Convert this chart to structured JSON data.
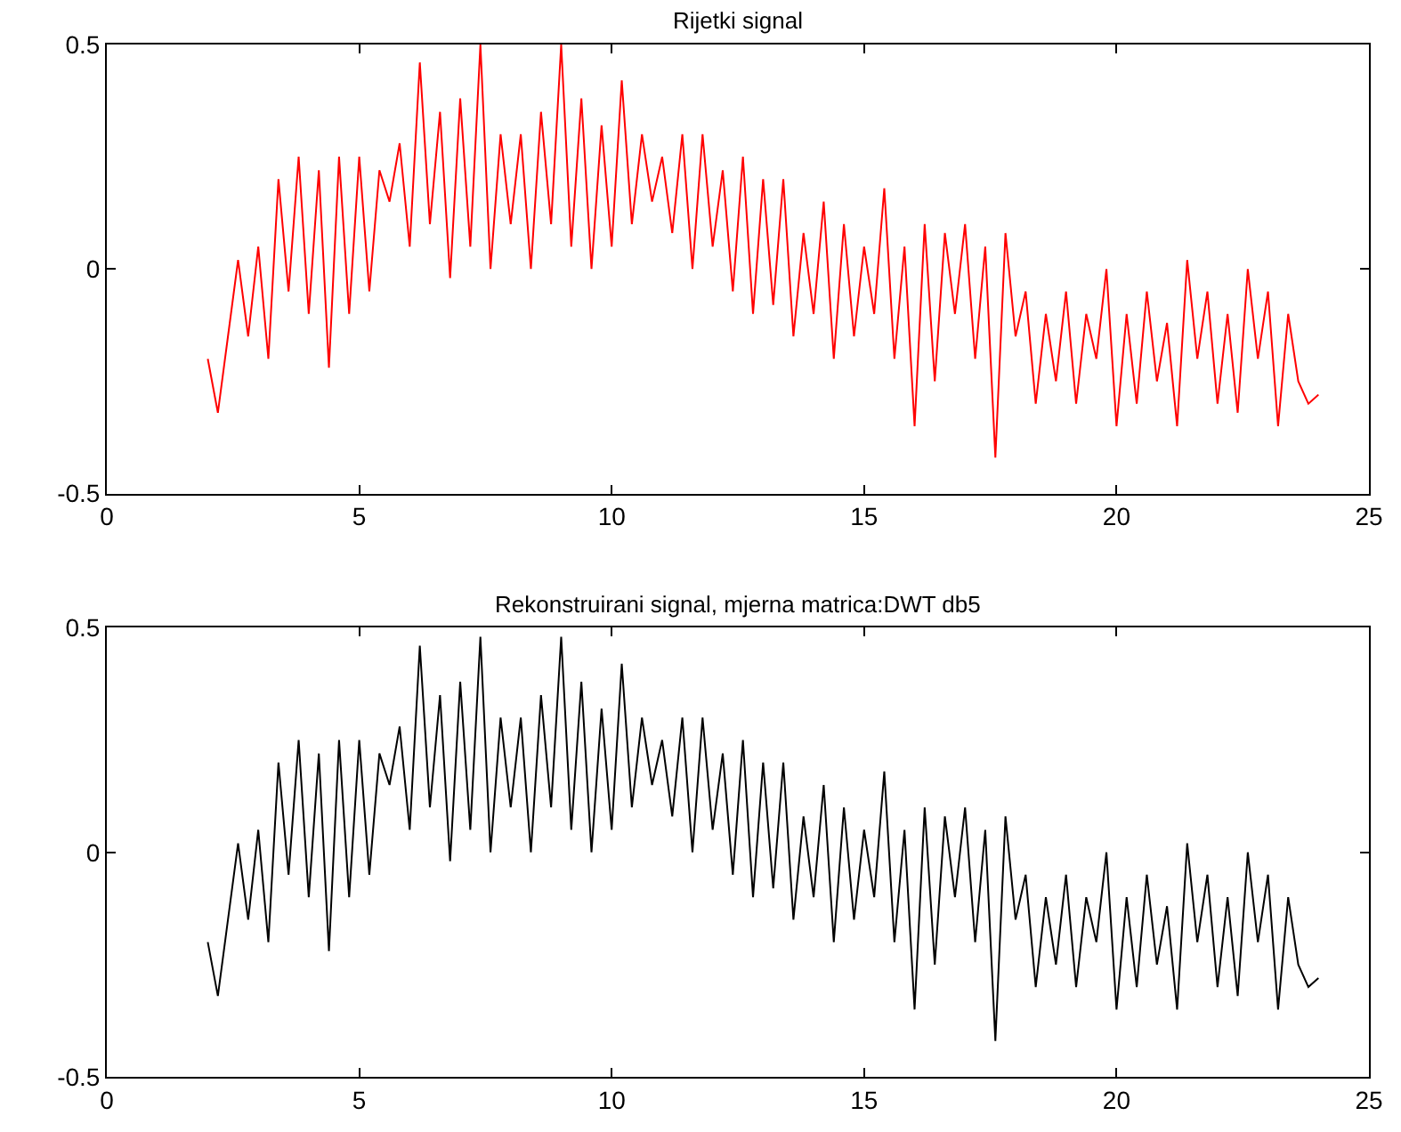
{
  "chart_data": [
    {
      "type": "line",
      "title": "Rijetki signal",
      "xlim": [
        0,
        25
      ],
      "xticks": [
        0,
        5,
        10,
        15,
        20,
        25
      ],
      "ylim": [
        -0.5,
        0.5
      ],
      "yticks": [
        -0.5,
        0,
        0.5
      ],
      "grid": false,
      "x": [
        2.0,
        2.2,
        2.4,
        2.6,
        2.8,
        3.0,
        3.2,
        3.4,
        3.6,
        3.8,
        4.0,
        4.2,
        4.4,
        4.6,
        4.8,
        5.0,
        5.2,
        5.4,
        5.6,
        5.8,
        6.0,
        6.2,
        6.4,
        6.6,
        6.8,
        7.0,
        7.2,
        7.4,
        7.6,
        7.8,
        8.0,
        8.2,
        8.4,
        8.6,
        8.8,
        9.0,
        9.2,
        9.4,
        9.6,
        9.8,
        10.0,
        10.2,
        10.4,
        10.6,
        10.8,
        11.0,
        11.2,
        11.4,
        11.6,
        11.8,
        12.0,
        12.2,
        12.4,
        12.6,
        12.8,
        13.0,
        13.2,
        13.4,
        13.6,
        13.8,
        14.0,
        14.2,
        14.4,
        14.6,
        14.8,
        15.0,
        15.2,
        15.4,
        15.6,
        15.8,
        16.0,
        16.2,
        16.4,
        16.6,
        16.8,
        17.0,
        17.2,
        17.4,
        17.6,
        17.8,
        18.0,
        18.2,
        18.4,
        18.6,
        18.8,
        19.0,
        19.2,
        19.4,
        19.6,
        19.8,
        20.0,
        20.2,
        20.4,
        20.6,
        20.8,
        21.0,
        21.2,
        21.4,
        21.6,
        21.8,
        22.0,
        22.2,
        22.4,
        22.6,
        22.8,
        23.0,
        23.2,
        23.4,
        23.6,
        23.8,
        24.0
      ],
      "series": [
        {
          "color": "#ff0000",
          "values": [
            -0.2,
            -0.32,
            -0.15,
            0.02,
            -0.15,
            0.05,
            -0.2,
            0.2,
            -0.05,
            0.25,
            -0.1,
            0.22,
            -0.22,
            0.25,
            -0.1,
            0.25,
            -0.05,
            0.22,
            0.15,
            0.28,
            0.05,
            0.46,
            0.1,
            0.35,
            -0.02,
            0.38,
            0.05,
            0.5,
            0.0,
            0.3,
            0.1,
            0.3,
            0.0,
            0.35,
            0.1,
            0.5,
            0.05,
            0.38,
            0.0,
            0.32,
            0.05,
            0.42,
            0.1,
            0.3,
            0.15,
            0.25,
            0.08,
            0.3,
            0.0,
            0.3,
            0.05,
            0.22,
            -0.05,
            0.25,
            -0.1,
            0.2,
            -0.08,
            0.2,
            -0.15,
            0.08,
            -0.1,
            0.15,
            -0.2,
            0.1,
            -0.15,
            0.05,
            -0.1,
            0.18,
            -0.2,
            0.05,
            -0.35,
            0.1,
            -0.25,
            0.08,
            -0.1,
            0.1,
            -0.2,
            0.05,
            -0.42,
            0.08,
            -0.15,
            -0.05,
            -0.3,
            -0.1,
            -0.25,
            -0.05,
            -0.3,
            -0.1,
            -0.2,
            0.0,
            -0.35,
            -0.1,
            -0.3,
            -0.05,
            -0.25,
            -0.12,
            -0.35,
            0.02,
            -0.2,
            -0.05,
            -0.3,
            -0.1,
            -0.32,
            0.0,
            -0.2,
            -0.05,
            -0.35,
            -0.1,
            -0.25,
            -0.3,
            -0.28
          ]
        }
      ]
    },
    {
      "type": "line",
      "title": "Rekonstruirani signal, mjerna matrica:DWT db5",
      "xlim": [
        0,
        25
      ],
      "xticks": [
        0,
        5,
        10,
        15,
        20,
        25
      ],
      "ylim": [
        -0.5,
        0.5
      ],
      "yticks": [
        -0.5,
        0,
        0.5
      ],
      "grid": false,
      "x": [
        2.0,
        2.2,
        2.4,
        2.6,
        2.8,
        3.0,
        3.2,
        3.4,
        3.6,
        3.8,
        4.0,
        4.2,
        4.4,
        4.6,
        4.8,
        5.0,
        5.2,
        5.4,
        5.6,
        5.8,
        6.0,
        6.2,
        6.4,
        6.6,
        6.8,
        7.0,
        7.2,
        7.4,
        7.6,
        7.8,
        8.0,
        8.2,
        8.4,
        8.6,
        8.8,
        9.0,
        9.2,
        9.4,
        9.6,
        9.8,
        10.0,
        10.2,
        10.4,
        10.6,
        10.8,
        11.0,
        11.2,
        11.4,
        11.6,
        11.8,
        12.0,
        12.2,
        12.4,
        12.6,
        12.8,
        13.0,
        13.2,
        13.4,
        13.6,
        13.8,
        14.0,
        14.2,
        14.4,
        14.6,
        14.8,
        15.0,
        15.2,
        15.4,
        15.6,
        15.8,
        16.0,
        16.2,
        16.4,
        16.6,
        16.8,
        17.0,
        17.2,
        17.4,
        17.6,
        17.8,
        18.0,
        18.2,
        18.4,
        18.6,
        18.8,
        19.0,
        19.2,
        19.4,
        19.6,
        19.8,
        20.0,
        20.2,
        20.4,
        20.6,
        20.8,
        21.0,
        21.2,
        21.4,
        21.6,
        21.8,
        22.0,
        22.2,
        22.4,
        22.6,
        22.8,
        23.0,
        23.2,
        23.4,
        23.6,
        23.8,
        24.0
      ],
      "series": [
        {
          "color": "#000000",
          "values": [
            -0.2,
            -0.32,
            -0.15,
            0.02,
            -0.15,
            0.05,
            -0.2,
            0.2,
            -0.05,
            0.25,
            -0.1,
            0.22,
            -0.22,
            0.25,
            -0.1,
            0.25,
            -0.05,
            0.22,
            0.15,
            0.28,
            0.05,
            0.46,
            0.1,
            0.35,
            -0.02,
            0.38,
            0.05,
            0.48,
            0.0,
            0.3,
            0.1,
            0.3,
            0.0,
            0.35,
            0.1,
            0.48,
            0.05,
            0.38,
            0.0,
            0.32,
            0.05,
            0.42,
            0.1,
            0.3,
            0.15,
            0.25,
            0.08,
            0.3,
            0.0,
            0.3,
            0.05,
            0.22,
            -0.05,
            0.25,
            -0.1,
            0.2,
            -0.08,
            0.2,
            -0.15,
            0.08,
            -0.1,
            0.15,
            -0.2,
            0.1,
            -0.15,
            0.05,
            -0.1,
            0.18,
            -0.2,
            0.05,
            -0.35,
            0.1,
            -0.25,
            0.08,
            -0.1,
            0.1,
            -0.2,
            0.05,
            -0.42,
            0.08,
            -0.15,
            -0.05,
            -0.3,
            -0.1,
            -0.25,
            -0.05,
            -0.3,
            -0.1,
            -0.2,
            0.0,
            -0.35,
            -0.1,
            -0.3,
            -0.05,
            -0.25,
            -0.12,
            -0.35,
            0.02,
            -0.2,
            -0.05,
            -0.3,
            -0.1,
            -0.32,
            0.0,
            -0.2,
            -0.05,
            -0.35,
            -0.1,
            -0.25,
            -0.3,
            -0.28
          ]
        }
      ]
    }
  ]
}
